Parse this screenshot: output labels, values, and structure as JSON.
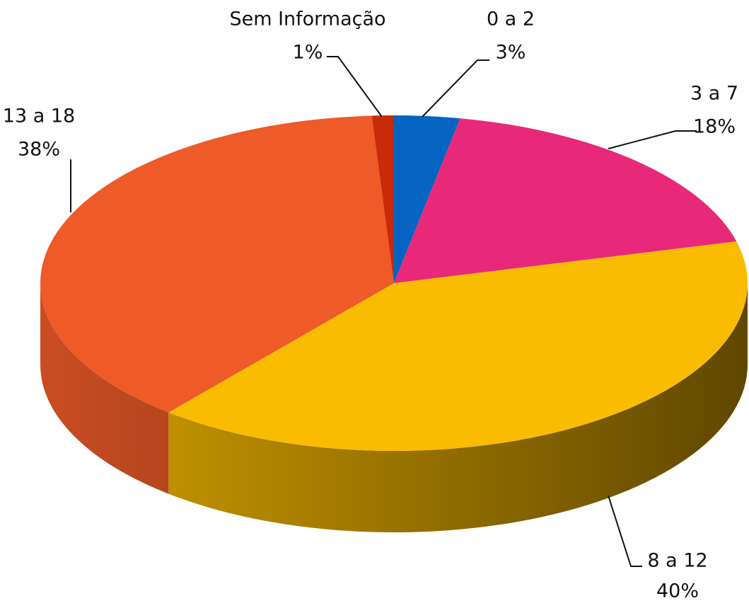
{
  "chart_data": {
    "type": "pie3d",
    "categories": [
      "0 a 2",
      "3 a 7",
      "8 a 12",
      "13 a 18",
      "Sem Informação"
    ],
    "values": [
      3,
      18,
      40,
      38,
      1
    ],
    "value_labels": [
      "3%",
      "18%",
      "40%",
      "38%",
      "1%"
    ],
    "colors": [
      "#0563c1",
      "#e8297a",
      "#f9bc00",
      "#ee5a28",
      "#c82a0a"
    ]
  }
}
